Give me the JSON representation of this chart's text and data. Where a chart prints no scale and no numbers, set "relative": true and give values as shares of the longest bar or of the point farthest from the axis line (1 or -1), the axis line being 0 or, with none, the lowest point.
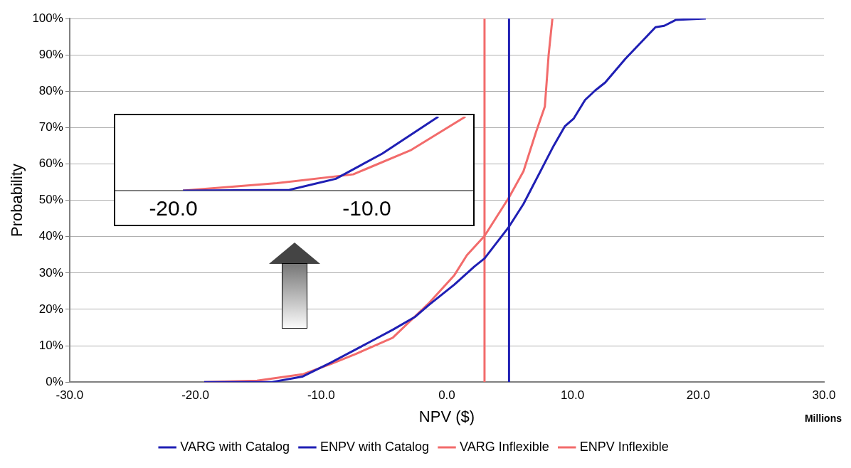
{
  "chart_data": [
    {
      "type": "line",
      "xlabel": "NPV ($)",
      "ylabel": "Probability",
      "annotations": [
        "Millions"
      ],
      "xlim": [
        -30,
        30
      ],
      "xticks": [
        {
          "value": -30,
          "label": "-30.0"
        },
        {
          "value": -20,
          "label": "-20.0"
        },
        {
          "value": -10,
          "label": "-10.0"
        },
        {
          "value": 0,
          "label": "0.0"
        },
        {
          "value": 10,
          "label": "10.0"
        },
        {
          "value": 20,
          "label": "20.0"
        },
        {
          "value": 30,
          "label": "30.0"
        }
      ],
      "ylim": [
        0,
        100
      ],
      "yticks": [
        {
          "value": 0,
          "label": "0%"
        },
        {
          "value": 10,
          "label": "10%"
        },
        {
          "value": 20,
          "label": "20%"
        },
        {
          "value": 30,
          "label": "30%"
        },
        {
          "value": 40,
          "label": "40%"
        },
        {
          "value": 50,
          "label": "50%"
        },
        {
          "value": 60,
          "label": "60%"
        },
        {
          "value": 70,
          "label": "70%"
        },
        {
          "value": 80,
          "label": "80%"
        },
        {
          "value": 90,
          "label": "90%"
        },
        {
          "value": 100,
          "label": "100%"
        }
      ],
      "grid": "y",
      "legend": "bottom",
      "series": [
        {
          "name": "VARG with Catalog",
          "color": "#1f1fb4",
          "x": [
            -19.3,
            -13.9,
            -11.5,
            -9.2,
            -6.2,
            -4.3,
            -2.5,
            -1.4,
            0.6,
            2.2,
            3.0,
            4.9,
            6.1,
            8.5,
            9.4,
            10.1,
            11.0,
            11.8,
            12.6,
            14.2,
            16.6,
            17.3,
            18.2,
            20.6
          ],
          "values": [
            0,
            0,
            1.5,
            5.4,
            10.9,
            14.4,
            18,
            21.3,
            26.8,
            31.8,
            34,
            42.5,
            49,
            65,
            70.4,
            72.5,
            77.6,
            80.2,
            82.4,
            88.9,
            97.6,
            98,
            99.6,
            100
          ]
        },
        {
          "name": "ENPV with Catalog",
          "color": "#1f1fb4",
          "x": [
            4.95,
            4.95
          ],
          "values": [
            0,
            100
          ]
        },
        {
          "name": "VARG Inflexible",
          "color": "#f26b6b",
          "x": [
            -19.3,
            -15.1,
            -11.4,
            -9.2,
            -7.2,
            -4.3,
            -1.4,
            0.6,
            1.6,
            3.0,
            4.95,
            6.1,
            7.1,
            7.8,
            8.1,
            8.4
          ],
          "values": [
            0,
            0.4,
            2.2,
            5,
            7.8,
            12.2,
            21.8,
            29.4,
            34.9,
            40.2,
            50.8,
            58,
            68.8,
            75.8,
            90,
            100
          ]
        },
        {
          "name": "ENPV Inflexible",
          "color": "#f26b6b",
          "x": [
            3.0,
            3.0
          ],
          "values": [
            0,
            100
          ]
        }
      ]
    },
    {
      "type": "line",
      "relative": true,
      "xlim": [
        -23,
        -4.5
      ],
      "xticks": [
        {
          "value": -20,
          "label": "-20.0"
        },
        {
          "value": -10,
          "label": "-10.0"
        }
      ],
      "tick_labels": "x",
      "series": [
        {
          "color": "#1f1fb4",
          "x": [
            -19.5,
            -14,
            -11.6,
            -9.2,
            -6.3
          ],
          "values": [
            0,
            0.01,
            0.16,
            0.5,
            1
          ]
        },
        {
          "color": "#f26b6b",
          "x": [
            -19.5,
            -14.65,
            -10.7,
            -7.7,
            -4.9
          ],
          "values": [
            0,
            0.1,
            0.22,
            0.55,
            1
          ]
        }
      ]
    }
  ]
}
